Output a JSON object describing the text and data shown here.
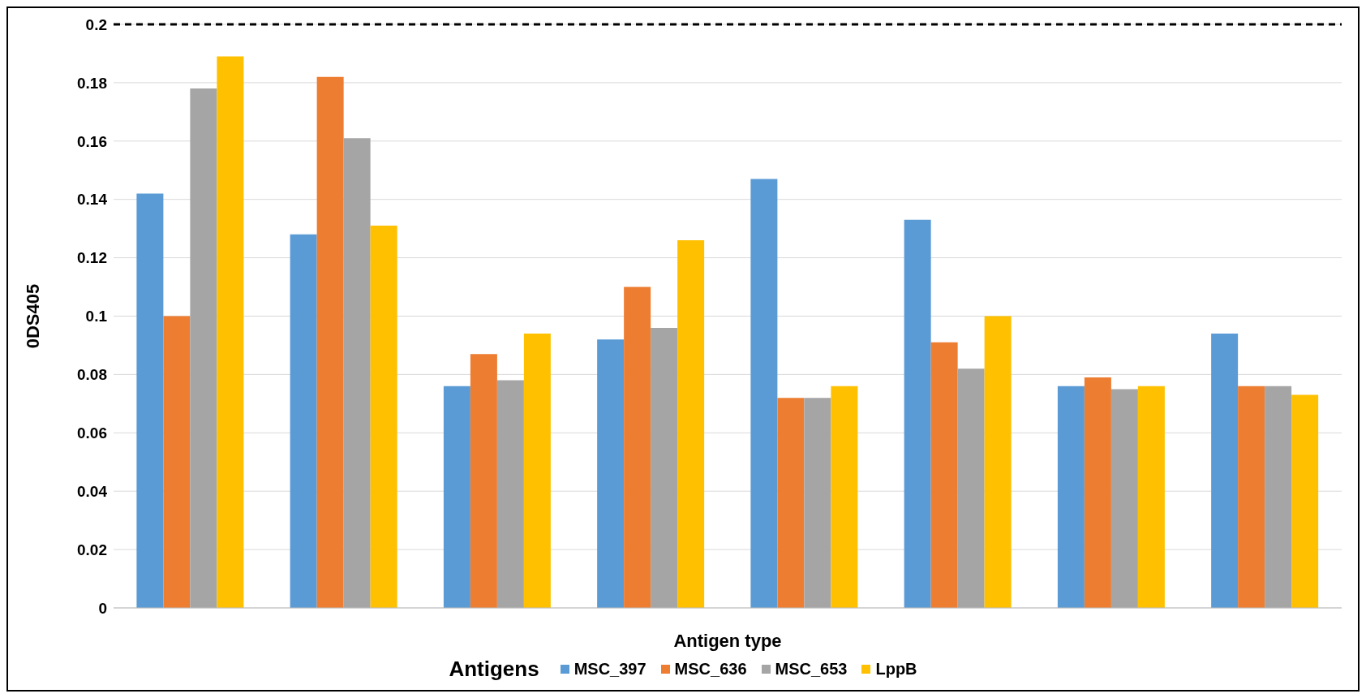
{
  "chart_data": {
    "type": "bar",
    "xlabel": "Antigen type",
    "ylabel": "0DS405",
    "legend_title": "Antigens",
    "legend": "bottom",
    "grid": "y",
    "categories": [
      null,
      null,
      null,
      null,
      null,
      null,
      null,
      null
    ],
    "series": [
      {
        "name": "MSC_397",
        "color": "#5b9bd5",
        "values": [
          0.142,
          0.128,
          0.076,
          0.092,
          0.147,
          0.133,
          0.076,
          0.094
        ]
      },
      {
        "name": "MSC_636",
        "color": "#ed7d31",
        "values": [
          0.1,
          0.182,
          0.087,
          0.11,
          0.072,
          0.091,
          0.079,
          0.076
        ]
      },
      {
        "name": "MSC_653",
        "color": "#a5a5a5",
        "values": [
          0.178,
          0.161,
          0.078,
          0.096,
          0.072,
          0.082,
          0.075,
          0.076
        ]
      },
      {
        "name": "LppB",
        "color": "#ffc000",
        "values": [
          0.189,
          0.131,
          0.094,
          0.126,
          0.076,
          0.1,
          0.076,
          0.073
        ]
      }
    ],
    "ylim": [
      0,
      0.2
    ],
    "yticks": [
      0,
      0.02,
      0.04,
      0.06,
      0.08,
      0.1,
      0.12,
      0.14,
      0.16,
      0.18,
      0.2
    ],
    "ref_lines": [
      {
        "axis": "y",
        "value": 0.2,
        "color": "#000000",
        "line_style": "dashed"
      }
    ]
  }
}
